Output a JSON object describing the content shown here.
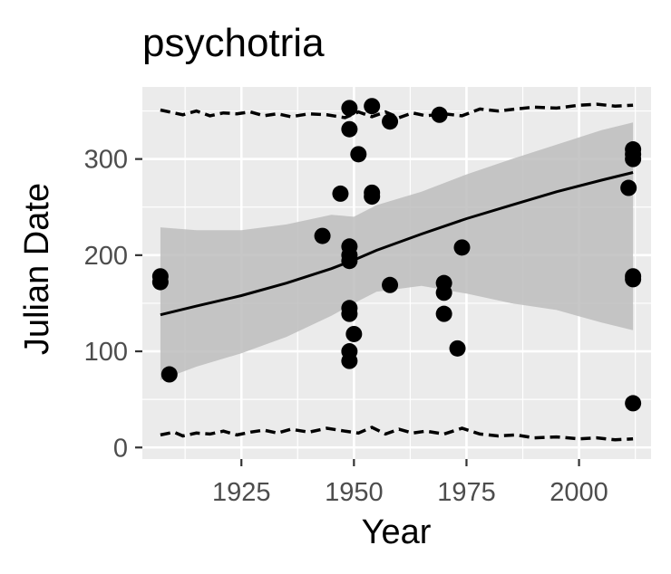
{
  "chart_data": {
    "type": "scatter",
    "title": "psychotria",
    "xlabel": "Year",
    "ylabel": "Julian Date",
    "xlim": [
      1903,
      2016
    ],
    "ylim": [
      -12,
      375
    ],
    "xticks": [
      1925,
      1950,
      1975,
      2000
    ],
    "yticks": [
      0,
      100,
      200,
      300
    ],
    "grid": true,
    "legend": "none",
    "colors": {
      "panel": "#ebebeb",
      "grid": "#ffffff",
      "points": "#000000",
      "ribbon": "#bdbdbd",
      "text": "#4d4d4d"
    },
    "points": [
      {
        "x": 1907,
        "y": 178
      },
      {
        "x": 1907,
        "y": 172
      },
      {
        "x": 1909,
        "y": 76
      },
      {
        "x": 1943,
        "y": 220
      },
      {
        "x": 1947,
        "y": 264
      },
      {
        "x": 1949,
        "y": 353
      },
      {
        "x": 1949,
        "y": 331
      },
      {
        "x": 1949,
        "y": 209
      },
      {
        "x": 1949,
        "y": 200
      },
      {
        "x": 1949,
        "y": 194
      },
      {
        "x": 1949,
        "y": 145
      },
      {
        "x": 1949,
        "y": 139
      },
      {
        "x": 1949,
        "y": 100
      },
      {
        "x": 1949,
        "y": 90
      },
      {
        "x": 1950,
        "y": 118
      },
      {
        "x": 1951,
        "y": 305
      },
      {
        "x": 1954,
        "y": 355
      },
      {
        "x": 1954,
        "y": 265
      },
      {
        "x": 1954,
        "y": 261
      },
      {
        "x": 1958,
        "y": 339
      },
      {
        "x": 1958,
        "y": 169
      },
      {
        "x": 1969,
        "y": 346
      },
      {
        "x": 1970,
        "y": 171
      },
      {
        "x": 1970,
        "y": 161
      },
      {
        "x": 1970,
        "y": 139
      },
      {
        "x": 1973,
        "y": 103
      },
      {
        "x": 1974,
        "y": 208
      },
      {
        "x": 2011,
        "y": 270
      },
      {
        "x": 2012,
        "y": 310
      },
      {
        "x": 2012,
        "y": 305
      },
      {
        "x": 2012,
        "y": 300
      },
      {
        "x": 2012,
        "y": 178
      },
      {
        "x": 2012,
        "y": 175
      },
      {
        "x": 2012,
        "y": 46
      }
    ],
    "trend": {
      "x": [
        1907,
        1915,
        1925,
        1935,
        1945,
        1950,
        1955,
        1965,
        1975,
        1985,
        1995,
        2005,
        2012
      ],
      "y": [
        138,
        147,
        158,
        171,
        186,
        195,
        205,
        222,
        238,
        252,
        266,
        278,
        286
      ],
      "lower": [
        70,
        84,
        98,
        115,
        137,
        150,
        162,
        168,
        160,
        150,
        143,
        130,
        122
      ],
      "upper": [
        229,
        226,
        226,
        232,
        242,
        240,
        252,
        266,
        284,
        300,
        315,
        330,
        338
      ]
    },
    "upper_dashed": {
      "x": [
        1907,
        1910,
        1912,
        1915,
        1918,
        1921,
        1924,
        1927,
        1930,
        1933,
        1936,
        1940,
        1944,
        1948,
        1951,
        1954,
        1957,
        1960,
        1963,
        1966,
        1970,
        1974,
        1978,
        1982,
        1986,
        1990,
        1995,
        2000,
        2004,
        2008,
        2012
      ],
      "y": [
        351,
        348,
        346,
        350,
        345,
        348,
        347,
        349,
        345,
        347,
        344,
        347,
        346,
        343,
        349,
        344,
        349,
        343,
        348,
        345,
        347,
        345,
        352,
        350,
        352,
        354,
        353,
        356,
        357,
        355,
        356
      ]
    },
    "lower_dashed": {
      "x": [
        1907,
        1910,
        1912,
        1915,
        1918,
        1921,
        1924,
        1927,
        1930,
        1933,
        1936,
        1940,
        1944,
        1948,
        1951,
        1954,
        1957,
        1960,
        1963,
        1966,
        1970,
        1974,
        1978,
        1982,
        1986,
        1990,
        1995,
        2000,
        2004,
        2008,
        2012
      ],
      "y": [
        13,
        16,
        12,
        15,
        14,
        17,
        13,
        16,
        18,
        15,
        19,
        16,
        20,
        17,
        15,
        21,
        14,
        19,
        15,
        17,
        14,
        20,
        14,
        12,
        13,
        10,
        11,
        9,
        10,
        8,
        9
      ]
    }
  }
}
